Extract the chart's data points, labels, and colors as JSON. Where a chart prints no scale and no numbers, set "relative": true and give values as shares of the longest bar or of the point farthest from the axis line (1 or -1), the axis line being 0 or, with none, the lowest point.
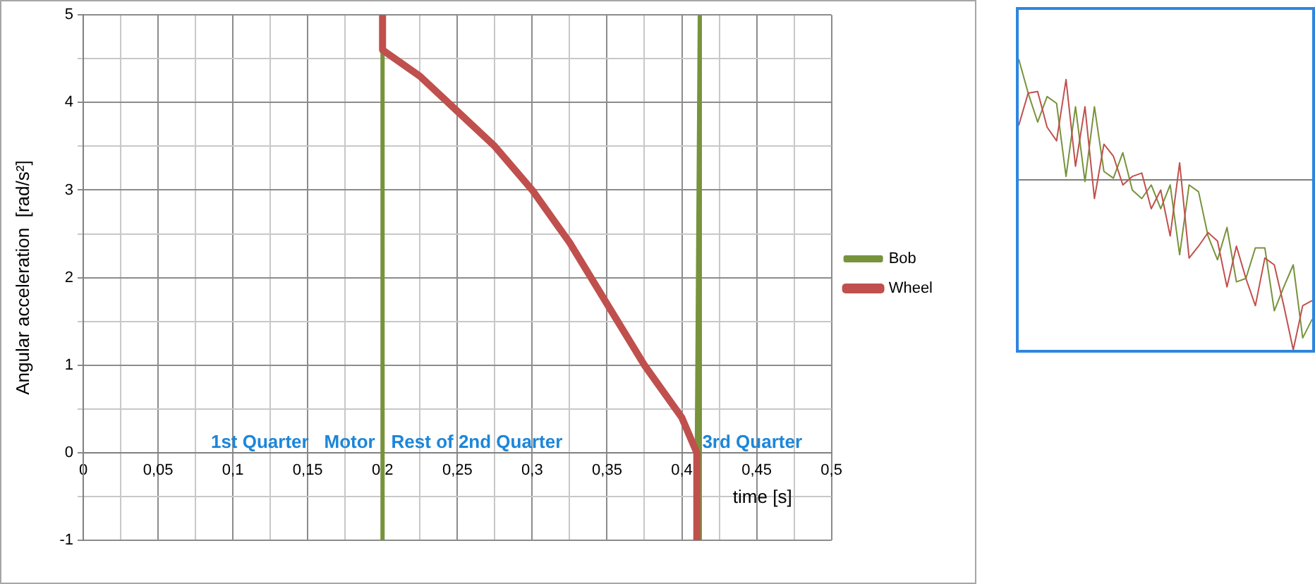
{
  "chart_data": [
    {
      "type": "line",
      "xlabel": "time [s]",
      "ylabel": "Angular acceleration  [rad/s²]",
      "legend": "right",
      "grid": true,
      "marker": "none",
      "line_style": "solid",
      "xlim": [
        0,
        0.5
      ],
      "ylim": [
        -1,
        5
      ],
      "xticks": [
        0,
        {
          "value": 0.025,
          "label": null
        },
        {
          "value": 0.05,
          "label": "0,05"
        },
        {
          "value": 0.075,
          "label": null
        },
        {
          "value": 0.1,
          "label": "0,1"
        },
        {
          "value": 0.125,
          "label": null
        },
        {
          "value": 0.15,
          "label": "0,15"
        },
        {
          "value": 0.175,
          "label": null
        },
        {
          "value": 0.2,
          "label": "0,2"
        },
        {
          "value": 0.225,
          "label": null
        },
        {
          "value": 0.25,
          "label": "0,25"
        },
        {
          "value": 0.275,
          "label": null
        },
        {
          "value": 0.3,
          "label": "0,3"
        },
        {
          "value": 0.325,
          "label": null
        },
        {
          "value": 0.35,
          "label": "0,35"
        },
        {
          "value": 0.375,
          "label": null
        },
        {
          "value": 0.4,
          "label": "0,4"
        },
        {
          "value": 0.425,
          "label": null
        },
        {
          "value": 0.45,
          "label": "0,45"
        },
        {
          "value": 0.475,
          "label": null
        },
        {
          "value": 0.5,
          "label": "0,5"
        }
      ],
      "yticks": [
        -1,
        {
          "value": -0.5,
          "label": null
        },
        0,
        {
          "value": 0.5,
          "label": null
        },
        1,
        {
          "value": 1.5,
          "label": null
        },
        2,
        {
          "value": 2.5,
          "label": null
        },
        3,
        {
          "value": 3.5,
          "label": null
        },
        4,
        {
          "value": 4.5,
          "label": null
        },
        5
      ],
      "annotations": [
        "1st Quarter",
        "Motor",
        "Rest of 2nd Quarter",
        "3rd Quarter"
      ],
      "series": [
        {
          "name": "Bob",
          "color": "#77933c",
          "x": [
            0.2,
            0.2,
            0.2,
            0.225,
            0.25,
            0.275,
            0.3,
            0.325,
            0.35,
            0.375,
            0.4,
            0.41,
            0.412,
            0.412
          ],
          "values": [
            -1,
            5,
            4.6,
            4.3,
            3.9,
            3.5,
            3.0,
            2.4,
            1.7,
            1.0,
            0.4,
            0,
            5,
            -1
          ]
        },
        {
          "name": "Wheel",
          "color": "#c0504d",
          "x": [
            0.2,
            0.2,
            0.225,
            0.25,
            0.275,
            0.3,
            0.325,
            0.35,
            0.375,
            0.4,
            0.41,
            0.41
          ],
          "values": [
            5,
            4.6,
            4.3,
            3.9,
            3.5,
            3.0,
            2.4,
            1.7,
            1.0,
            0.4,
            0,
            -1
          ]
        }
      ]
    },
    {
      "type": "line",
      "relative": true,
      "grid": false,
      "marker": "none",
      "categories": [
        null,
        null,
        null,
        null,
        null,
        null,
        null,
        null,
        null,
        null,
        null,
        null,
        null,
        null,
        null,
        null,
        null,
        null,
        null,
        null,
        null,
        null,
        null,
        null,
        null,
        null,
        null,
        null,
        null,
        null,
        null,
        null
      ],
      "series": [
        {
          "color": "#77933c",
          "values": [
            0.71,
            0.51,
            0.34,
            0.49,
            0.45,
            0.02,
            0.43,
            -0.01,
            0.43,
            0.05,
            0.01,
            0.16,
            -0.06,
            -0.11,
            -0.03,
            -0.17,
            -0.03,
            -0.44,
            -0.03,
            -0.07,
            -0.33,
            -0.47,
            -0.28,
            -0.6,
            -0.58,
            -0.4,
            -0.4,
            -0.77,
            -0.63,
            -0.5,
            -0.93,
            -0.82
          ]
        },
        {
          "color": "#c0504d",
          "values": [
            0.32,
            0.51,
            0.52,
            0.31,
            0.23,
            0.59,
            0.08,
            0.43,
            -0.11,
            0.21,
            0.14,
            -0.03,
            0.02,
            0.04,
            -0.17,
            -0.06,
            -0.33,
            0.1,
            -0.46,
            -0.39,
            -0.31,
            -0.36,
            -0.63,
            -0.39,
            -0.58,
            -0.74,
            -0.46,
            -0.5,
            -0.74,
            -1,
            -0.74,
            -0.71
          ]
        }
      ]
    }
  ]
}
